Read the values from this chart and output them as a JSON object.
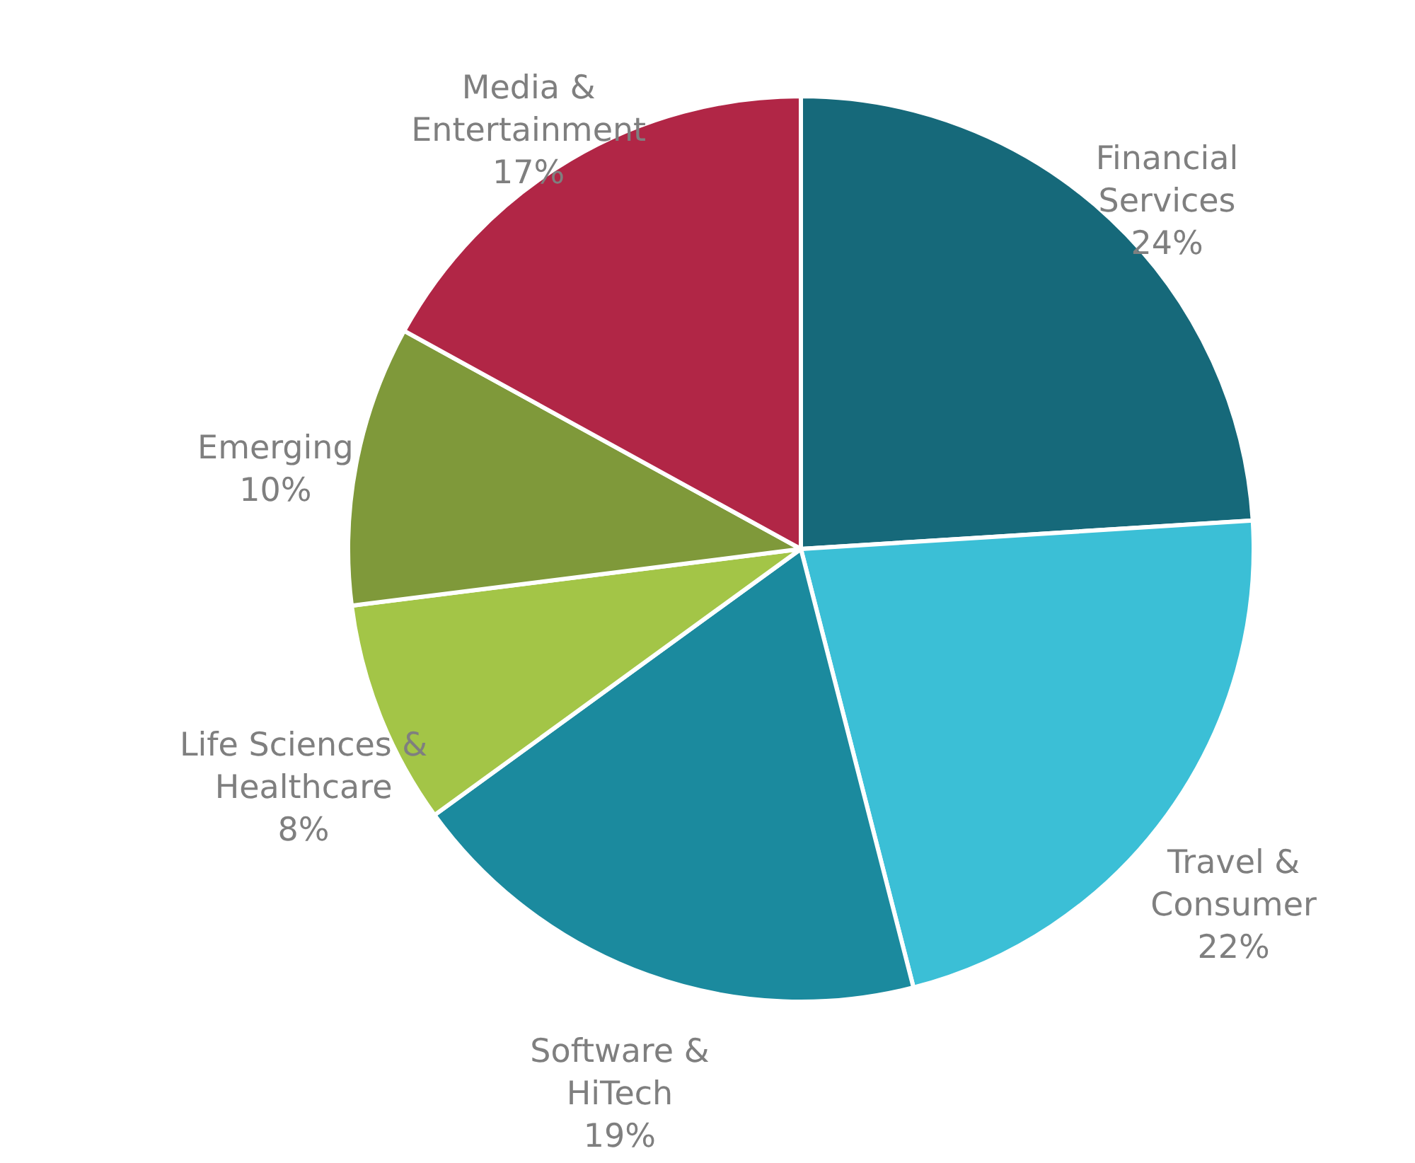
{
  "chart_data": {
    "type": "pie",
    "categories": [
      "Financial Services",
      "Travel & Consumer",
      "Software & HiTech",
      "Life Sciences & Healthcare",
      "Emerging",
      "Media & Entertainment"
    ],
    "values": [
      24,
      22,
      19,
      8,
      10,
      17
    ],
    "value_labels": [
      "24%",
      "22%",
      "19%",
      "8%",
      "10%",
      "17%"
    ],
    "colors": [
      "#16697a",
      "#3bbfd6",
      "#1b8a9e",
      "#a3c547",
      "#7f993a",
      "#b12646"
    ]
  }
}
